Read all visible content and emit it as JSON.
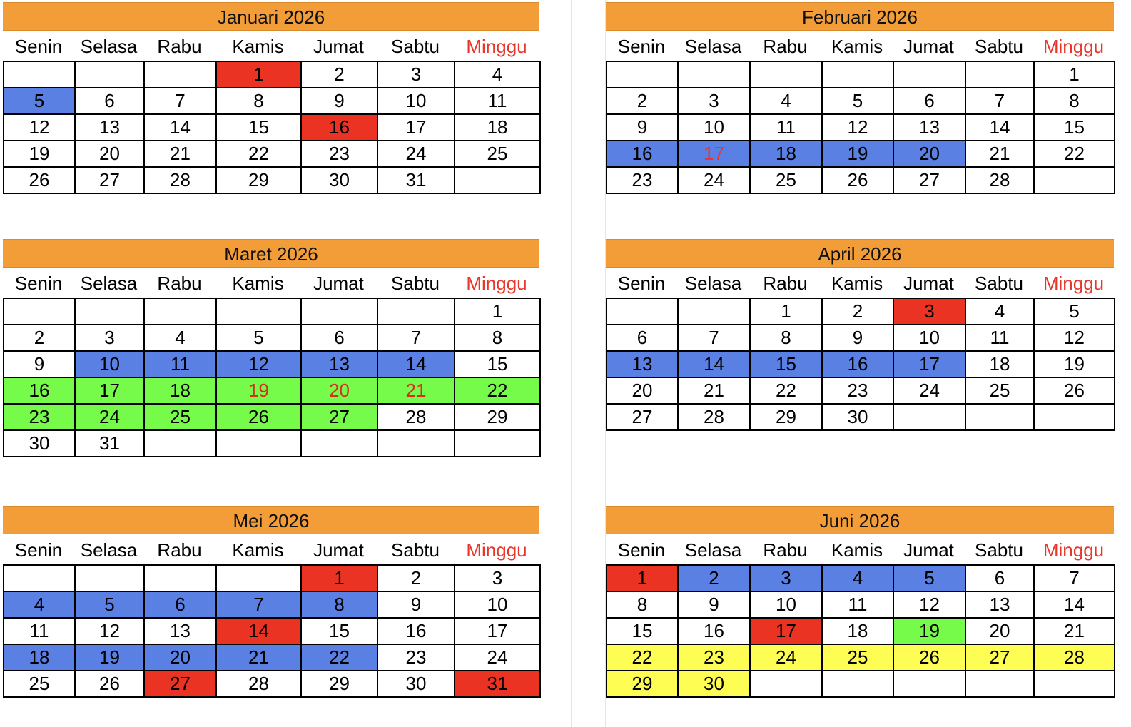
{
  "days": [
    "Senin",
    "Selasa",
    "Rabu",
    "Kamis",
    "Jumat",
    "Sabtu",
    "Minggu"
  ],
  "colors": {
    "header": "#f29d38",
    "holiday_red": "#ea3323",
    "leave_blue": "#5a80e3",
    "break_green": "#76fb4b",
    "vacation_yellow": "#fdfd54",
    "sunday_text": "#e8362b"
  },
  "months": [
    {
      "title": "Januari 2026",
      "weeks": [
        [
          {
            "d": ""
          },
          {
            "d": ""
          },
          {
            "d": ""
          },
          {
            "d": "1",
            "bg": "red"
          },
          {
            "d": "2"
          },
          {
            "d": "3"
          },
          {
            "d": "4"
          }
        ],
        [
          {
            "d": "5",
            "bg": "blue"
          },
          {
            "d": "6"
          },
          {
            "d": "7"
          },
          {
            "d": "8"
          },
          {
            "d": "9"
          },
          {
            "d": "10"
          },
          {
            "d": "11"
          }
        ],
        [
          {
            "d": "12"
          },
          {
            "d": "13"
          },
          {
            "d": "14"
          },
          {
            "d": "15"
          },
          {
            "d": "16",
            "bg": "red"
          },
          {
            "d": "17"
          },
          {
            "d": "18"
          }
        ],
        [
          {
            "d": "19"
          },
          {
            "d": "20"
          },
          {
            "d": "21"
          },
          {
            "d": "22"
          },
          {
            "d": "23"
          },
          {
            "d": "24"
          },
          {
            "d": "25"
          }
        ],
        [
          {
            "d": "26"
          },
          {
            "d": "27"
          },
          {
            "d": "28"
          },
          {
            "d": "29"
          },
          {
            "d": "30"
          },
          {
            "d": "31"
          },
          {
            "d": ""
          }
        ]
      ]
    },
    {
      "title": "Februari 2026",
      "weeks": [
        [
          {
            "d": ""
          },
          {
            "d": ""
          },
          {
            "d": ""
          },
          {
            "d": ""
          },
          {
            "d": ""
          },
          {
            "d": ""
          },
          {
            "d": "1"
          }
        ],
        [
          {
            "d": "2"
          },
          {
            "d": "3"
          },
          {
            "d": "4"
          },
          {
            "d": "5"
          },
          {
            "d": "6"
          },
          {
            "d": "7"
          },
          {
            "d": "8"
          }
        ],
        [
          {
            "d": "9"
          },
          {
            "d": "10"
          },
          {
            "d": "11"
          },
          {
            "d": "12"
          },
          {
            "d": "13"
          },
          {
            "d": "14"
          },
          {
            "d": "15"
          }
        ],
        [
          {
            "d": "16",
            "bg": "blue"
          },
          {
            "d": "17",
            "bg": "blue",
            "text": "red"
          },
          {
            "d": "18",
            "bg": "blue"
          },
          {
            "d": "19",
            "bg": "blue"
          },
          {
            "d": "20",
            "bg": "blue"
          },
          {
            "d": "21"
          },
          {
            "d": "22"
          }
        ],
        [
          {
            "d": "23"
          },
          {
            "d": "24"
          },
          {
            "d": "25"
          },
          {
            "d": "26"
          },
          {
            "d": "27"
          },
          {
            "d": "28"
          },
          {
            "d": ""
          }
        ]
      ]
    },
    {
      "title": "Maret 2026",
      "weeks": [
        [
          {
            "d": ""
          },
          {
            "d": ""
          },
          {
            "d": ""
          },
          {
            "d": ""
          },
          {
            "d": ""
          },
          {
            "d": ""
          },
          {
            "d": "1"
          }
        ],
        [
          {
            "d": "2"
          },
          {
            "d": "3"
          },
          {
            "d": "4"
          },
          {
            "d": "5"
          },
          {
            "d": "6"
          },
          {
            "d": "7"
          },
          {
            "d": "8"
          }
        ],
        [
          {
            "d": "9"
          },
          {
            "d": "10",
            "bg": "blue"
          },
          {
            "d": "11",
            "bg": "blue"
          },
          {
            "d": "12",
            "bg": "blue"
          },
          {
            "d": "13",
            "bg": "blue"
          },
          {
            "d": "14",
            "bg": "blue"
          },
          {
            "d": "15"
          }
        ],
        [
          {
            "d": "16",
            "bg": "green"
          },
          {
            "d": "17",
            "bg": "green"
          },
          {
            "d": "18",
            "bg": "green"
          },
          {
            "d": "19",
            "bg": "green",
            "text": "redgreen"
          },
          {
            "d": "20",
            "bg": "green",
            "text": "redgreen"
          },
          {
            "d": "21",
            "bg": "green",
            "text": "redgreen"
          },
          {
            "d": "22",
            "bg": "green"
          }
        ],
        [
          {
            "d": "23",
            "bg": "green"
          },
          {
            "d": "24",
            "bg": "green"
          },
          {
            "d": "25",
            "bg": "green"
          },
          {
            "d": "26",
            "bg": "green"
          },
          {
            "d": "27",
            "bg": "green"
          },
          {
            "d": "28"
          },
          {
            "d": "29"
          }
        ],
        [
          {
            "d": "30"
          },
          {
            "d": "31"
          },
          {
            "d": ""
          },
          {
            "d": ""
          },
          {
            "d": ""
          },
          {
            "d": ""
          },
          {
            "d": ""
          }
        ]
      ]
    },
    {
      "title": "April 2026",
      "weeks": [
        [
          {
            "d": ""
          },
          {
            "d": ""
          },
          {
            "d": "1"
          },
          {
            "d": "2"
          },
          {
            "d": "3",
            "bg": "red"
          },
          {
            "d": "4"
          },
          {
            "d": "5"
          }
        ],
        [
          {
            "d": "6"
          },
          {
            "d": "7"
          },
          {
            "d": "8"
          },
          {
            "d": "9"
          },
          {
            "d": "10"
          },
          {
            "d": "11"
          },
          {
            "d": "12"
          }
        ],
        [
          {
            "d": "13",
            "bg": "blue"
          },
          {
            "d": "14",
            "bg": "blue"
          },
          {
            "d": "15",
            "bg": "blue"
          },
          {
            "d": "16",
            "bg": "blue"
          },
          {
            "d": "17",
            "bg": "blue"
          },
          {
            "d": "18"
          },
          {
            "d": "19"
          }
        ],
        [
          {
            "d": "20"
          },
          {
            "d": "21"
          },
          {
            "d": "22"
          },
          {
            "d": "23"
          },
          {
            "d": "24"
          },
          {
            "d": "25"
          },
          {
            "d": "26"
          }
        ],
        [
          {
            "d": "27"
          },
          {
            "d": "28"
          },
          {
            "d": "29"
          },
          {
            "d": "30"
          },
          {
            "d": ""
          },
          {
            "d": ""
          },
          {
            "d": ""
          }
        ]
      ]
    },
    {
      "title": "Mei 2026",
      "weeks": [
        [
          {
            "d": ""
          },
          {
            "d": ""
          },
          {
            "d": ""
          },
          {
            "d": ""
          },
          {
            "d": "1",
            "bg": "red"
          },
          {
            "d": "2"
          },
          {
            "d": "3"
          }
        ],
        [
          {
            "d": "4",
            "bg": "blue"
          },
          {
            "d": "5",
            "bg": "blue"
          },
          {
            "d": "6",
            "bg": "blue"
          },
          {
            "d": "7",
            "bg": "blue"
          },
          {
            "d": "8",
            "bg": "blue"
          },
          {
            "d": "9"
          },
          {
            "d": "10"
          }
        ],
        [
          {
            "d": "11"
          },
          {
            "d": "12"
          },
          {
            "d": "13"
          },
          {
            "d": "14",
            "bg": "red"
          },
          {
            "d": "15"
          },
          {
            "d": "16"
          },
          {
            "d": "17"
          }
        ],
        [
          {
            "d": "18",
            "bg": "blue"
          },
          {
            "d": "19",
            "bg": "blue"
          },
          {
            "d": "20",
            "bg": "blue"
          },
          {
            "d": "21",
            "bg": "blue"
          },
          {
            "d": "22",
            "bg": "blue"
          },
          {
            "d": "23"
          },
          {
            "d": "24"
          }
        ],
        [
          {
            "d": "25"
          },
          {
            "d": "26"
          },
          {
            "d": "27",
            "bg": "red"
          },
          {
            "d": "28"
          },
          {
            "d": "29"
          },
          {
            "d": "30"
          },
          {
            "d": "31",
            "bg": "red"
          }
        ]
      ]
    },
    {
      "title": "Juni 2026",
      "weeks": [
        [
          {
            "d": "1",
            "bg": "red"
          },
          {
            "d": "2",
            "bg": "blue"
          },
          {
            "d": "3",
            "bg": "blue"
          },
          {
            "d": "4",
            "bg": "blue"
          },
          {
            "d": "5",
            "bg": "blue"
          },
          {
            "d": "6"
          },
          {
            "d": "7"
          }
        ],
        [
          {
            "d": "8"
          },
          {
            "d": "9"
          },
          {
            "d": "10"
          },
          {
            "d": "11"
          },
          {
            "d": "12"
          },
          {
            "d": "13"
          },
          {
            "d": "14"
          }
        ],
        [
          {
            "d": "15"
          },
          {
            "d": "16"
          },
          {
            "d": "17",
            "bg": "red"
          },
          {
            "d": "18"
          },
          {
            "d": "19",
            "bg": "green"
          },
          {
            "d": "20"
          },
          {
            "d": "21"
          }
        ],
        [
          {
            "d": "22",
            "bg": "yellow"
          },
          {
            "d": "23",
            "bg": "yellow"
          },
          {
            "d": "24",
            "bg": "yellow"
          },
          {
            "d": "25",
            "bg": "yellow"
          },
          {
            "d": "26",
            "bg": "yellow"
          },
          {
            "d": "27",
            "bg": "yellow"
          },
          {
            "d": "28",
            "bg": "yellow"
          }
        ],
        [
          {
            "d": "29",
            "bg": "yellow"
          },
          {
            "d": "30",
            "bg": "yellow"
          },
          {
            "d": ""
          },
          {
            "d": ""
          },
          {
            "d": ""
          },
          {
            "d": ""
          },
          {
            "d": ""
          }
        ]
      ]
    }
  ]
}
